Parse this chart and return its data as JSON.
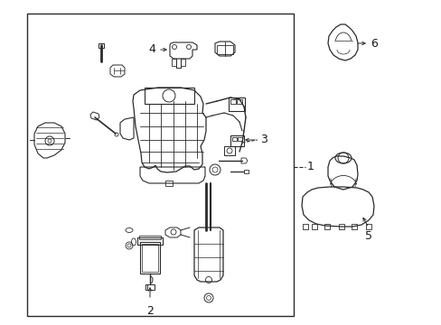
{
  "bg_color": "#ffffff",
  "line_color": "#2a2a2a",
  "fig_width": 4.89,
  "fig_height": 3.6,
  "dpi": 100,
  "label_fontsize": 9,
  "label_color": "#1a1a1a"
}
